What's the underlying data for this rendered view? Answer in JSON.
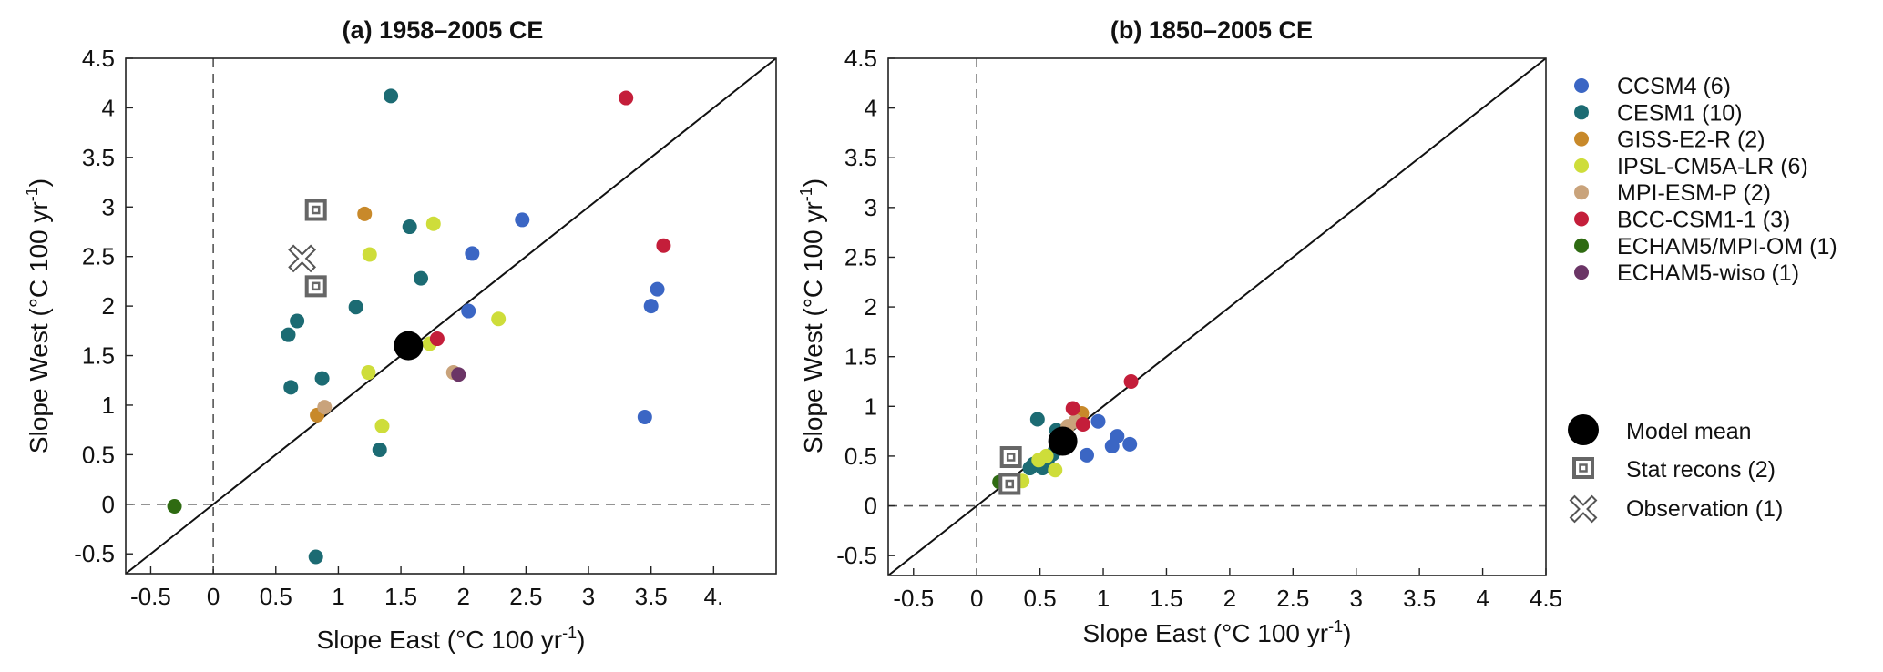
{
  "chart_data": [
    {
      "type": "scatter",
      "title": "(a) 1958–2005 CE",
      "xlabel": "Slope East (°C 100 yr",
      "ylabel": "Slope West (°C 100 yr",
      "unit_sup": "-1",
      "unit_close": ")",
      "xlim": [
        -0.7,
        4.5
      ],
      "ylim": [
        -0.7,
        4.5
      ],
      "xticks": [
        -0.5,
        0,
        0.5,
        1,
        1.5,
        2,
        2.5,
        3,
        3.5,
        4
      ],
      "xtick_labels": [
        "-0.5",
        "0",
        "0.5",
        "1",
        "1.5",
        "2",
        "2.5",
        "3",
        "3.5",
        "4."
      ],
      "yticks": [
        -0.5,
        0,
        0.5,
        1,
        1.5,
        2,
        2.5,
        3,
        3.5,
        4,
        4.5
      ],
      "ytick_labels": [
        "-0.5",
        "0",
        "0.5",
        "1",
        "1.5",
        "2",
        "2.5",
        "3",
        "3.5",
        "4",
        "4.5"
      ],
      "series": [
        {
          "name": "CCSM4",
          "color": "#3b66c4",
          "points": [
            [
              2.47,
              2.87
            ],
            [
              2.07,
              2.53
            ],
            [
              2.04,
              1.95
            ],
            [
              3.55,
              2.17
            ],
            [
              3.5,
              2.0
            ],
            [
              3.45,
              0.88
            ]
          ]
        },
        {
          "name": "CESM1",
          "color": "#1c6b73",
          "points": [
            [
              1.42,
              4.12
            ],
            [
              1.57,
              2.8
            ],
            [
              1.66,
              2.28
            ],
            [
              1.14,
              1.99
            ],
            [
              0.67,
              1.85
            ],
            [
              0.6,
              1.71
            ],
            [
              0.87,
              1.27
            ],
            [
              0.62,
              1.18
            ],
            [
              1.33,
              0.55
            ],
            [
              0.82,
              -0.53
            ]
          ]
        },
        {
          "name": "GISS-E2-R",
          "color": "#c8892a",
          "points": [
            [
              1.21,
              2.93
            ],
            [
              0.83,
              0.9
            ]
          ]
        },
        {
          "name": "IPSL-CM5A-LR",
          "color": "#cedd3a",
          "points": [
            [
              1.76,
              2.83
            ],
            [
              1.25,
              2.52
            ],
            [
              2.28,
              1.87
            ],
            [
              1.73,
              1.62
            ],
            [
              1.24,
              1.33
            ],
            [
              1.35,
              0.79
            ]
          ]
        },
        {
          "name": "MPI-ESM-P",
          "color": "#c9a37b",
          "points": [
            [
              1.92,
              1.33
            ],
            [
              0.89,
              0.98
            ]
          ]
        },
        {
          "name": "BCC-CSM1-1",
          "color": "#c41e3a",
          "points": [
            [
              3.3,
              4.1
            ],
            [
              3.6,
              2.61
            ],
            [
              1.79,
              1.67
            ]
          ]
        },
        {
          "name": "ECHAM5/MPI-OM",
          "color": "#2f6b12",
          "points": [
            [
              -0.31,
              -0.02
            ]
          ]
        },
        {
          "name": "ECHAM5-wiso",
          "color": "#6b3566",
          "points": [
            [
              1.96,
              1.31
            ]
          ]
        }
      ],
      "model_mean": [
        1.56,
        1.6
      ],
      "stat_recons": [
        [
          0.82,
          2.97
        ],
        [
          0.82,
          2.2
        ]
      ],
      "observation": [
        0.71,
        2.48
      ]
    },
    {
      "type": "scatter",
      "title": "(b) 1850–2005 CE",
      "xlabel": "Slope East (°C 100 yr",
      "ylabel": "Slope West (°C 100 yr",
      "unit_sup": "-1",
      "unit_close": ")",
      "xlim": [
        -0.7,
        4.5
      ],
      "ylim": [
        -0.7,
        4.5
      ],
      "xticks": [
        -0.5,
        0,
        0.5,
        1,
        1.5,
        2,
        2.5,
        3,
        3.5,
        4,
        4.5
      ],
      "xtick_labels": [
        "-0.5",
        "0",
        "0.5",
        "1",
        "1.5",
        "2",
        "2.5",
        "3",
        "3.5",
        "4",
        "4.5"
      ],
      "yticks": [
        -0.5,
        0,
        0.5,
        1,
        1.5,
        2,
        2.5,
        3,
        3.5,
        4,
        4.5
      ],
      "ytick_labels": [
        "-0.5",
        "0",
        "0.5",
        "1",
        "1.5",
        "2",
        "2.5",
        "3",
        "3.5",
        "4",
        "4.5"
      ],
      "series": [
        {
          "name": "CCSM4",
          "color": "#3b66c4",
          "points": [
            [
              0.96,
              0.85
            ],
            [
              1.11,
              0.7
            ],
            [
              1.21,
              0.62
            ],
            [
              1.07,
              0.6
            ],
            [
              0.87,
              0.51
            ],
            [
              0.52,
              0.41
            ]
          ]
        },
        {
          "name": "CESM1",
          "color": "#1c6b73",
          "points": [
            [
              0.48,
              0.87
            ],
            [
              0.63,
              0.76
            ],
            [
              0.45,
              0.42
            ],
            [
              0.52,
              0.38
            ],
            [
              0.56,
              0.46
            ],
            [
              0.6,
              0.52
            ],
            [
              0.42,
              0.38
            ],
            [
              0.5,
              0.44
            ],
            [
              0.62,
              0.56
            ],
            [
              0.55,
              0.4
            ]
          ]
        },
        {
          "name": "GISS-E2-R",
          "color": "#c8892a",
          "points": [
            [
              0.8,
              0.88
            ],
            [
              0.83,
              0.93
            ]
          ]
        },
        {
          "name": "IPSL-CM5A-LR",
          "color": "#cedd3a",
          "points": [
            [
              0.55,
              0.5
            ],
            [
              0.49,
              0.46
            ],
            [
              0.62,
              0.36
            ],
            [
              0.36,
              0.25
            ],
            [
              0.3,
              0.24
            ],
            [
              0.67,
              0.58
            ]
          ]
        },
        {
          "name": "MPI-ESM-P",
          "color": "#c9a37b",
          "points": [
            [
              0.78,
              0.85
            ],
            [
              0.72,
              0.8
            ]
          ]
        },
        {
          "name": "BCC-CSM1-1",
          "color": "#c41e3a",
          "points": [
            [
              1.22,
              1.25
            ],
            [
              0.76,
              0.98
            ],
            [
              0.84,
              0.82
            ]
          ]
        },
        {
          "name": "ECHAM5/MPI-OM",
          "color": "#2f6b12",
          "points": [
            [
              0.18,
              0.24
            ]
          ]
        },
        {
          "name": "ECHAM5-wiso",
          "color": "#6b3566",
          "points": [
            [
              0.7,
              0.68
            ]
          ]
        }
      ],
      "model_mean": [
        0.68,
        0.65
      ],
      "stat_recons": [
        [
          0.27,
          0.49
        ],
        [
          0.26,
          0.22
        ]
      ]
    }
  ],
  "legend": {
    "entries": [
      {
        "label": "CCSM4 (6)",
        "color": "#3b66c4"
      },
      {
        "label": "CESM1 (10)",
        "color": "#1c6b73"
      },
      {
        "label": "GISS-E2-R (2)",
        "color": "#c8892a"
      },
      {
        "label": "IPSL-CM5A-LR (6)",
        "color": "#cedd3a"
      },
      {
        "label": "MPI-ESM-P (2)",
        "color": "#c9a37b"
      },
      {
        "label": "BCC-CSM1-1 (3)",
        "color": "#c41e3a"
      },
      {
        "label": "ECHAM5/MPI-OM (1)",
        "color": "#2f6b12"
      },
      {
        "label": "ECHAM5-wiso (1)",
        "color": "#6b3566"
      }
    ],
    "model_mean_label": "Model mean",
    "stat_recons_label": "Stat recons (2)",
    "observation_label": "Observation (1)"
  }
}
